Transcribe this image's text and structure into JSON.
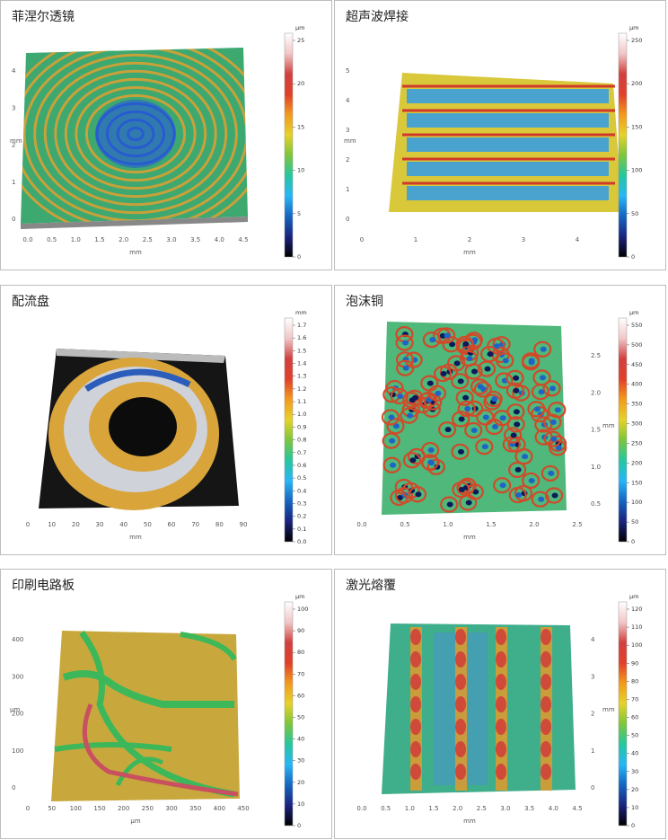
{
  "panels": [
    {
      "title": "菲涅尔透镜",
      "colorbar": {
        "unit": "μm",
        "ticks": [
          "0",
          "5",
          "10",
          "15",
          "20",
          "25"
        ]
      },
      "xticks": [
        "0.0",
        "0.5",
        "1.0",
        "1.5",
        "2.0",
        "2.5",
        "3.0",
        "3.5",
        "4.0",
        "4.5"
      ],
      "xunit": "mm",
      "yticks": [
        "0",
        "1",
        "2",
        "3",
        "4"
      ],
      "yunit": "mm"
    },
    {
      "title": "超声波焊接",
      "colorbar": {
        "unit": "μm",
        "ticks": [
          "0",
          "50",
          "100",
          "150",
          "200",
          "250"
        ]
      },
      "xticks": [
        "0",
        "1",
        "2",
        "3",
        "4"
      ],
      "xunit": "mm",
      "yticks": [
        "0",
        "1",
        "2",
        "3",
        "4",
        "5"
      ],
      "yunit": "mm"
    },
    {
      "title": "配流盘",
      "colorbar": {
        "unit": "mm",
        "ticks": [
          "0.0",
          "0.1",
          "0.2",
          "0.3",
          "0.4",
          "0.5",
          "0.6",
          "0.7",
          "0.8",
          "0.9",
          "1.0",
          "1.1",
          "1.2",
          "1.3",
          "1.4",
          "1.5",
          "1.6",
          "1.7"
        ]
      },
      "xticks": [
        "0",
        "10",
        "20",
        "30",
        "40",
        "50",
        "60",
        "70",
        "80",
        "90"
      ],
      "xunit": "mm"
    },
    {
      "title": "泡沫铜",
      "colorbar": {
        "unit": "μm",
        "ticks": [
          "0",
          "50",
          "100",
          "150",
          "200",
          "250",
          "300",
          "350",
          "400",
          "450",
          "500",
          "550"
        ]
      },
      "xticks": [
        "0.0",
        "0.5",
        "1.0",
        "1.5",
        "2.0",
        "2.5"
      ],
      "xunit": "mm",
      "yticks": [
        "0.5",
        "1.0",
        "1.5",
        "2.0",
        "2.5"
      ],
      "yunit": "mm"
    },
    {
      "title": "印刷电路板",
      "colorbar": {
        "unit": "μm",
        "ticks": [
          "0",
          "10",
          "20",
          "30",
          "40",
          "50",
          "60",
          "70",
          "80",
          "90",
          "100"
        ]
      },
      "xticks": [
        "0",
        "50",
        "100",
        "150",
        "200",
        "250",
        "300",
        "350",
        "400",
        "450"
      ],
      "xunit": "μm",
      "yticks": [
        "0",
        "100",
        "200",
        "300",
        "400"
      ],
      "yunit": "μm"
    },
    {
      "title": "激光熔覆",
      "colorbar": {
        "unit": "μm",
        "ticks": [
          "0",
          "10",
          "20",
          "30",
          "40",
          "50",
          "60",
          "70",
          "80",
          "90",
          "100",
          "110",
          "120"
        ]
      },
      "xticks": [
        "0.0",
        "0.5",
        "1.0",
        "1.5",
        "2.0",
        "2.5",
        "3.0",
        "3.5",
        "4.0",
        "4.5"
      ],
      "xunit": "mm",
      "yticks": [
        "0",
        "1",
        "2",
        "3",
        "4"
      ],
      "yunit": "mm"
    }
  ]
}
